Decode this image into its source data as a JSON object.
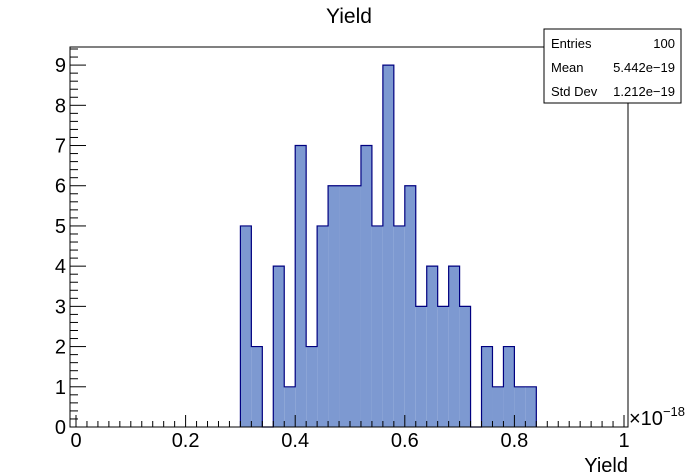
{
  "chart_data": {
    "type": "bar",
    "title": "Yield",
    "xlabel": "Yield",
    "ylabel": "",
    "x_multiplier": "×10",
    "x_multiplier_exponent": "−18",
    "xlim": [
      0,
      1
    ],
    "ylim": [
      0,
      9.45
    ],
    "x_ticks": [
      "0",
      "0.2",
      "0.4",
      "0.6",
      "0.8",
      "1"
    ],
    "y_ticks": [
      "0",
      "1",
      "2",
      "3",
      "4",
      "5",
      "6",
      "7",
      "8",
      "9"
    ],
    "bin_width": 0.02,
    "bins": [
      {
        "x": 0.3,
        "value": 5
      },
      {
        "x": 0.32,
        "value": 2
      },
      {
        "x": 0.34,
        "value": 0
      },
      {
        "x": 0.36,
        "value": 4
      },
      {
        "x": 0.38,
        "value": 1
      },
      {
        "x": 0.4,
        "value": 7
      },
      {
        "x": 0.42,
        "value": 2
      },
      {
        "x": 0.44,
        "value": 5
      },
      {
        "x": 0.46,
        "value": 6
      },
      {
        "x": 0.48,
        "value": 6
      },
      {
        "x": 0.5,
        "value": 6
      },
      {
        "x": 0.52,
        "value": 7
      },
      {
        "x": 0.54,
        "value": 5
      },
      {
        "x": 0.56,
        "value": 9
      },
      {
        "x": 0.58,
        "value": 5
      },
      {
        "x": 0.6,
        "value": 6
      },
      {
        "x": 0.62,
        "value": 3
      },
      {
        "x": 0.64,
        "value": 4
      },
      {
        "x": 0.66,
        "value": 3
      },
      {
        "x": 0.68,
        "value": 4
      },
      {
        "x": 0.7,
        "value": 3
      },
      {
        "x": 0.72,
        "value": 0
      },
      {
        "x": 0.74,
        "value": 2
      },
      {
        "x": 0.76,
        "value": 1
      },
      {
        "x": 0.78,
        "value": 2
      },
      {
        "x": 0.8,
        "value": 1
      },
      {
        "x": 0.82,
        "value": 1
      }
    ],
    "fill_color": "#7d99d1",
    "line_color": "#000080",
    "stats": {
      "entries_label": "Entries",
      "entries_value": "100",
      "mean_label": "Mean",
      "mean_value": "5.442e−19",
      "std_label": "Std Dev",
      "std_value": "1.212e−19"
    },
    "grid": false,
    "legend": "top-right"
  }
}
